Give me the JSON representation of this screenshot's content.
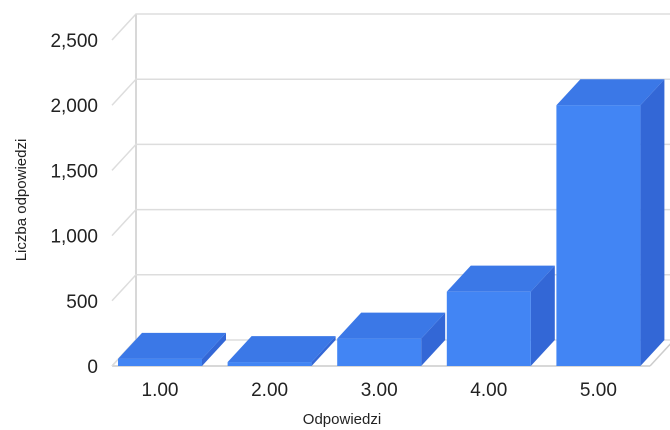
{
  "colors": {
    "bar_front": "#4285f4",
    "bar_top": "#3b78e7",
    "bar_side": "#3367d6",
    "grid": "#dddddd",
    "axis": "#cccccc",
    "text": "#222222"
  },
  "chart_data": {
    "type": "bar",
    "three_d": true,
    "categories": [
      "1.00",
      "2.00",
      "3.00",
      "4.00",
      "5.00"
    ],
    "values": [
      55,
      30,
      210,
      570,
      2000
    ],
    "xlabel": "Odpowiedzi",
    "ylabel": "Liczba odpowiedzi",
    "ylim": [
      0,
      2500
    ],
    "yticks": [
      "0",
      "500",
      "1,000",
      "1,500",
      "2,000",
      "2,500"
    ],
    "grid": true,
    "legend": "none"
  }
}
